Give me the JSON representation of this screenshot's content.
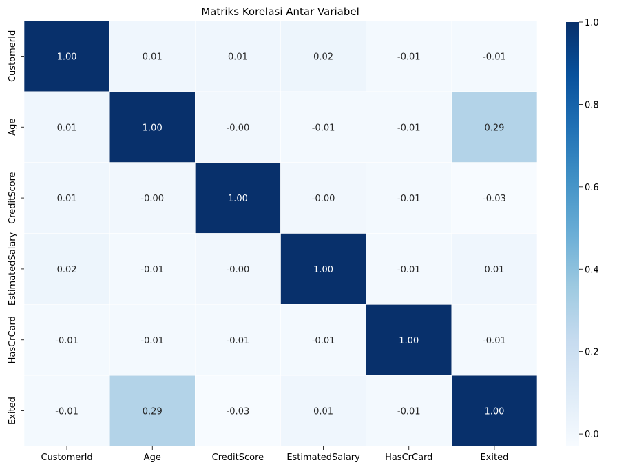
{
  "chart_data": {
    "type": "heatmap",
    "title": "Matriks Korelasi Antar Variabel",
    "x_labels": [
      "CustomerId",
      "Age",
      "CreditScore",
      "EstimatedSalary",
      "HasCrCard",
      "Exited"
    ],
    "y_labels": [
      "CustomerId",
      "Age",
      "CreditScore",
      "EstimatedSalary",
      "HasCrCard",
      "Exited"
    ],
    "values": [
      [
        1.0,
        0.01,
        0.01,
        0.02,
        -0.01,
        -0.01
      ],
      [
        0.01,
        1.0,
        -0.0,
        -0.01,
        -0.01,
        0.29
      ],
      [
        0.01,
        -0.0,
        1.0,
        -0.0,
        -0.01,
        -0.03
      ],
      [
        0.02,
        -0.01,
        -0.0,
        1.0,
        -0.01,
        0.01
      ],
      [
        -0.01,
        -0.01,
        -0.01,
        -0.01,
        1.0,
        -0.01
      ],
      [
        -0.01,
        0.29,
        -0.03,
        0.01,
        -0.01,
        1.0
      ]
    ],
    "cell_labels": [
      [
        "1.00",
        "0.01",
        "0.01",
        "0.02",
        "-0.01",
        "-0.01"
      ],
      [
        "0.01",
        "1.00",
        "-0.00",
        "-0.01",
        "-0.01",
        "0.29"
      ],
      [
        "0.01",
        "-0.00",
        "1.00",
        "-0.00",
        "-0.01",
        "-0.03"
      ],
      [
        "0.02",
        "-0.01",
        "-0.00",
        "1.00",
        "-0.01",
        "0.01"
      ],
      [
        "-0.01",
        "-0.01",
        "-0.01",
        "-0.01",
        "1.00",
        "-0.01"
      ],
      [
        "-0.01",
        "0.29",
        "-0.03",
        "0.01",
        "-0.01",
        "1.00"
      ]
    ],
    "colormap": "Blues",
    "colorbar": {
      "range": [
        -0.03,
        1.0
      ],
      "ticks": [
        0.0,
        0.2,
        0.4,
        0.6,
        0.8,
        1.0
      ],
      "tick_labels": [
        "0.0",
        "0.2",
        "0.4",
        "0.6",
        "0.8",
        "1.0"
      ]
    },
    "grid": false
  },
  "colors": {
    "cell_border": "#ffffff",
    "text_dark": "#262626",
    "text_light": "#ffffff",
    "blues_stops": [
      "#f7fbff",
      "#deebf7",
      "#c6dbef",
      "#9ecae1",
      "#6baed6",
      "#4292c6",
      "#2171b5",
      "#08519c",
      "#08306b"
    ]
  }
}
